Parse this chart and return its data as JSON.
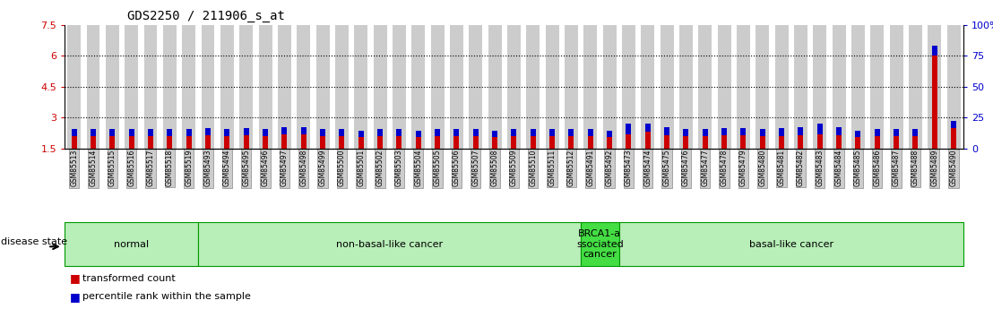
{
  "title": "GDS2250 / 211906_s_at",
  "samples": [
    "GSM85513",
    "GSM85514",
    "GSM85515",
    "GSM85516",
    "GSM85517",
    "GSM85518",
    "GSM85519",
    "GSM85493",
    "GSM85494",
    "GSM85495",
    "GSM85496",
    "GSM85497",
    "GSM85498",
    "GSM85499",
    "GSM85500",
    "GSM85501",
    "GSM85502",
    "GSM85503",
    "GSM85504",
    "GSM85505",
    "GSM85506",
    "GSM85507",
    "GSM85508",
    "GSM85509",
    "GSM85510",
    "GSM85511",
    "GSM85512",
    "GSM85491",
    "GSM85492",
    "GSM85473",
    "GSM85474",
    "GSM85475",
    "GSM85476",
    "GSM85477",
    "GSM85478",
    "GSM85479",
    "GSM85480",
    "GSM85481",
    "GSM85482",
    "GSM85483",
    "GSM85484",
    "GSM85485",
    "GSM85486",
    "GSM85487",
    "GSM85488",
    "GSM85489",
    "GSM85490"
  ],
  "red_values": [
    2.1,
    2.1,
    2.1,
    2.1,
    2.1,
    2.1,
    2.1,
    2.15,
    2.1,
    2.15,
    2.1,
    2.2,
    2.2,
    2.1,
    2.1,
    2.05,
    2.1,
    2.1,
    2.05,
    2.1,
    2.1,
    2.1,
    2.05,
    2.1,
    2.1,
    2.1,
    2.1,
    2.1,
    2.05,
    2.2,
    2.3,
    2.15,
    2.1,
    2.1,
    2.15,
    2.15,
    2.1,
    2.1,
    2.15,
    2.2,
    2.15,
    2.05,
    2.1,
    2.1,
    2.1,
    6.0,
    2.5
  ],
  "blue_values": [
    0.32,
    0.32,
    0.32,
    0.32,
    0.32,
    0.32,
    0.32,
    0.32,
    0.32,
    0.32,
    0.32,
    0.32,
    0.32,
    0.32,
    0.32,
    0.32,
    0.32,
    0.32,
    0.32,
    0.32,
    0.32,
    0.32,
    0.32,
    0.32,
    0.32,
    0.32,
    0.32,
    0.32,
    0.32,
    0.48,
    0.42,
    0.38,
    0.32,
    0.32,
    0.32,
    0.32,
    0.32,
    0.38,
    0.38,
    0.48,
    0.38,
    0.32,
    0.32,
    0.32,
    0.32,
    0.48,
    0.32
  ],
  "groups": [
    {
      "label": "normal",
      "start": 0,
      "end": 7,
      "color": "#b8eeb8",
      "border": "#009900"
    },
    {
      "label": "non-basal-like cancer",
      "start": 7,
      "end": 27,
      "color": "#b8eeb8",
      "border": "#009900"
    },
    {
      "label": "BRCA1-a\nssociated\ncancer",
      "start": 27,
      "end": 29,
      "color": "#44dd44",
      "border": "#009900"
    },
    {
      "label": "basal-like cancer",
      "start": 29,
      "end": 47,
      "color": "#b8eeb8",
      "border": "#009900"
    }
  ],
  "ylim": [
    1.5,
    7.5
  ],
  "yticks": [
    1.5,
    3.0,
    4.5,
    6.0,
    7.5
  ],
  "ytick_labels": [
    "1.5",
    "3",
    "4.5",
    "6",
    "7.5"
  ],
  "right_yticks": [
    0,
    25,
    50,
    75,
    100
  ],
  "right_ytick_labels": [
    "0",
    "25",
    "50",
    "75",
    "100%"
  ],
  "dotted_lines": [
    3.0,
    4.5,
    6.0
  ],
  "baseline": 1.5,
  "red_color": "#cc0000",
  "blue_color": "#0000cc",
  "bar_bg_color": "#cccccc",
  "title_fontsize": 10,
  "tick_label_fontsize": 5.5,
  "group_label_fontsize": 8,
  "legend_fontsize": 8,
  "ylabel_color": "#cc0000",
  "right_ylabel_color": "#0000cc"
}
